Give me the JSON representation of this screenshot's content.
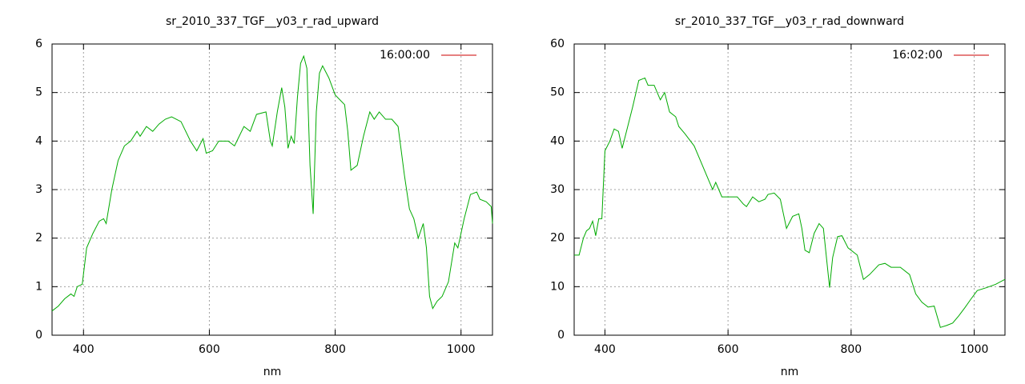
{
  "chart_data": [
    {
      "type": "line",
      "title": "sr_2010_337_TGF__y03_r_rad_upward",
      "x_label": "nm",
      "x": [
        350,
        360,
        370,
        380,
        385,
        390,
        398,
        405,
        415,
        425,
        432,
        436,
        445,
        455,
        465,
        475,
        485,
        490,
        500,
        510,
        520,
        530,
        540,
        555,
        570,
        580,
        590,
        595,
        605,
        615,
        630,
        640,
        655,
        665,
        675,
        690,
        697,
        700,
        708,
        715,
        720,
        725,
        730,
        735,
        740,
        745,
        750,
        755,
        760,
        765,
        770,
        775,
        780,
        790,
        800,
        815,
        820,
        825,
        835,
        845,
        855,
        862,
        870,
        880,
        890,
        900,
        910,
        918,
        925,
        932,
        940,
        945,
        950,
        955,
        962,
        970,
        980,
        990,
        995,
        1005,
        1015,
        1025,
        1030,
        1040,
        1048,
        1050
      ],
      "series": [
        {
          "name": "16:00:00",
          "color": "#00aa00",
          "legend_color": "#cc0000",
          "values": [
            0.5,
            0.6,
            0.75,
            0.85,
            0.8,
            1.0,
            1.05,
            1.8,
            2.1,
            2.35,
            2.4,
            2.3,
            3.0,
            3.6,
            3.9,
            4.0,
            4.2,
            4.1,
            4.3,
            4.2,
            4.35,
            4.45,
            4.5,
            4.4,
            4.0,
            3.8,
            4.05,
            3.75,
            3.8,
            4.0,
            4.0,
            3.9,
            4.3,
            4.2,
            4.55,
            4.6,
            4.0,
            3.9,
            4.6,
            5.1,
            4.7,
            3.85,
            4.1,
            3.95,
            4.9,
            5.6,
            5.75,
            5.5,
            3.5,
            2.5,
            4.6,
            5.4,
            5.55,
            5.3,
            4.95,
            4.75,
            4.2,
            3.4,
            3.5,
            4.1,
            4.6,
            4.45,
            4.6,
            4.45,
            4.45,
            4.3,
            3.3,
            2.6,
            2.4,
            2.0,
            2.3,
            1.8,
            0.8,
            0.55,
            0.7,
            0.8,
            1.1,
            1.9,
            1.8,
            2.4,
            2.9,
            2.95,
            2.8,
            2.75,
            2.65,
            2.3
          ]
        }
      ],
      "xlim": [
        350,
        1050
      ],
      "xticks": [
        400,
        600,
        800,
        1000
      ],
      "ylim": [
        0,
        6
      ],
      "yticks": [
        0,
        1,
        2,
        3,
        4,
        5,
        6
      ],
      "grid": true,
      "legend": "top-right"
    },
    {
      "type": "line",
      "title": "sr_2010_337_TGF__y03_r_rad_downward",
      "x_label": "nm",
      "x": [
        350,
        358,
        365,
        370,
        375,
        380,
        385,
        390,
        395,
        400,
        408,
        415,
        422,
        428,
        435,
        445,
        455,
        465,
        470,
        480,
        490,
        497,
        505,
        515,
        520,
        530,
        545,
        555,
        565,
        575,
        580,
        585,
        590,
        600,
        615,
        625,
        630,
        640,
        650,
        660,
        665,
        675,
        685,
        690,
        695,
        705,
        715,
        720,
        725,
        732,
        740,
        748,
        755,
        765,
        770,
        778,
        785,
        795,
        810,
        820,
        830,
        845,
        855,
        865,
        880,
        895,
        905,
        915,
        925,
        935,
        945,
        955,
        965,
        975,
        985,
        995,
        1005,
        1020,
        1035,
        1050
      ],
      "series": [
        {
          "name": "16:02:00",
          "color": "#00aa00",
          "legend_color": "#cc0000",
          "values": [
            16.5,
            16.5,
            20,
            21.5,
            22,
            23.5,
            20.5,
            24,
            24,
            38,
            40,
            42.5,
            42,
            38.5,
            42,
            47,
            52.5,
            53,
            51.5,
            51.5,
            48.5,
            50,
            46,
            45,
            43,
            41.5,
            39,
            36,
            33,
            30,
            31.5,
            30,
            28.5,
            28.5,
            28.5,
            27,
            26.5,
            28.5,
            27.5,
            28,
            29,
            29.3,
            28,
            25,
            22,
            24.5,
            25,
            22,
            17.5,
            17,
            21,
            23,
            22,
            9.8,
            16,
            20.3,
            20.5,
            18,
            16.5,
            11.5,
            12.5,
            14.5,
            14.8,
            14,
            14,
            12.5,
            8.5,
            6.8,
            5.8,
            6,
            1.6,
            2,
            2.5,
            4,
            5.7,
            7.5,
            9.2,
            9.8,
            10.5,
            11.5
          ]
        }
      ],
      "xlim": [
        350,
        1050
      ],
      "xticks": [
        400,
        600,
        800,
        1000
      ],
      "ylim": [
        0,
        60
      ],
      "yticks": [
        0,
        10,
        20,
        30,
        40,
        50,
        60
      ],
      "grid": true,
      "legend": "top-right"
    }
  ]
}
